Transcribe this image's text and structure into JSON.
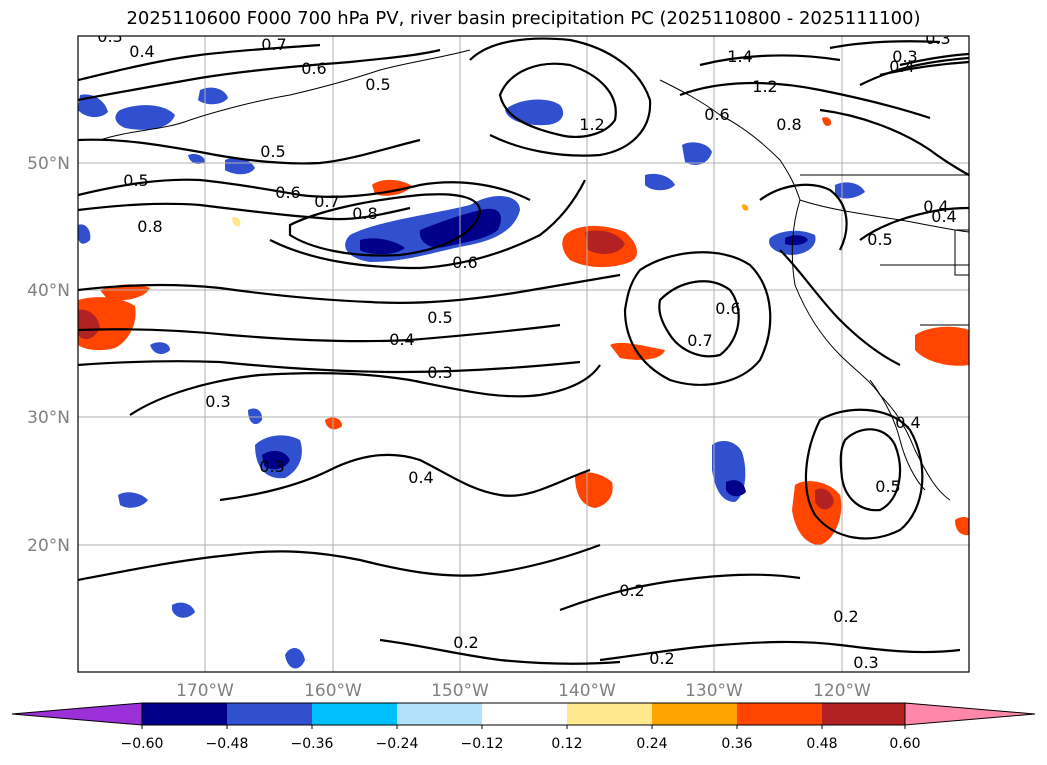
{
  "title": "2025110600 F000 700 hPa PV, river basin precipitation PC (2025110800 - 2025111100)",
  "map": {
    "lat_labels": [
      "50°N",
      "40°N",
      "30°N",
      "20°N"
    ],
    "lon_labels": [
      "170°W",
      "160°W",
      "150°W",
      "140°W",
      "130°W",
      "120°W"
    ],
    "contour_labels": [
      "0.3",
      "0.4",
      "0.7",
      "0.6",
      "0.5",
      "0.5",
      "0.5",
      "0.6",
      "0.7",
      "0.8",
      "0.8",
      "0.6",
      "0.5",
      "0.4",
      "0.3",
      "0.3",
      "0.4",
      "0.2",
      "0.2",
      "0.2",
      "0.2",
      "0.3",
      "0.5",
      "1.2",
      "1.4",
      "1.2",
      "0.8",
      "0.6",
      "0.7",
      "0.6",
      "0.3",
      "0.4",
      "0.4",
      "0.5",
      "0.4",
      "0.3",
      "0.3",
      "0.4"
    ]
  },
  "colorbar": {
    "ticks": [
      "−0.60",
      "−0.48",
      "−0.36",
      "−0.24",
      "−0.12",
      "0.12",
      "0.24",
      "0.36",
      "0.48",
      "0.60"
    ],
    "colors": [
      "#9b30d9",
      "#00008b",
      "#3050d0",
      "#00bfff",
      "#b0e0fa",
      "#ffffff",
      "#ffe98c",
      "#ffa500",
      "#ff4500",
      "#b22222",
      "#ff88aa"
    ]
  }
}
